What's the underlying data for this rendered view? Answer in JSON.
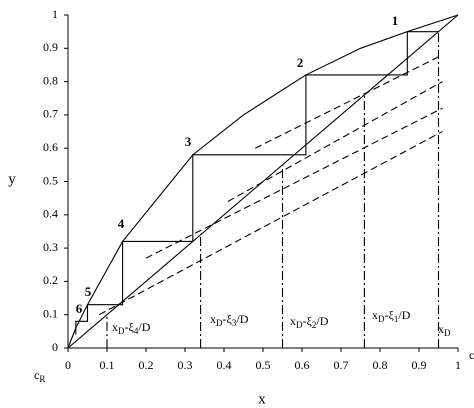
{
  "chart_data": {
    "type": "line",
    "xlabel": "x",
    "ylabel": "y",
    "xlim": [
      0,
      1
    ],
    "ylim": [
      0,
      1
    ],
    "xticks": [
      0,
      0.1,
      0.2,
      0.3,
      0.4,
      0.5,
      0.6,
      0.7,
      0.8,
      0.9,
      1
    ],
    "yticks": [
      0,
      0.1,
      0.2,
      0.3,
      0.4,
      0.5,
      0.6,
      0.7,
      0.8,
      0.9,
      1
    ],
    "series": [
      {
        "color": "#000000",
        "style": "solid",
        "x": [
          0,
          0.02,
          0.05,
          0.14,
          0.32,
          0.45,
          0.61,
          0.75,
          0.87,
          1
        ],
        "values": [
          0,
          0.06,
          0.13,
          0.32,
          0.58,
          0.7,
          0.82,
          0.9,
          0.95,
          1
        ]
      },
      {
        "color": "#000000",
        "style": "solid",
        "x": [
          0,
          1
        ],
        "values": [
          0,
          1
        ]
      },
      {
        "color": "#000000",
        "style": "solid",
        "x": [
          0.95,
          0.87,
          0.87,
          0.61,
          0.61,
          0.32,
          0.32,
          0.14,
          0.14,
          0.05,
          0.05,
          0.02,
          0.02
        ],
        "values": [
          0.95,
          0.95,
          0.82,
          0.82,
          0.58,
          0.58,
          0.32,
          0.32,
          0.13,
          0.13,
          0.08,
          0.08,
          0.04
        ]
      },
      {
        "color": "#000000",
        "style": "dash",
        "x": [
          0.48,
          0.96
        ],
        "values": [
          0.6,
          0.88
        ]
      },
      {
        "color": "#000000",
        "style": "dash",
        "x": [
          0.41,
          0.96
        ],
        "values": [
          0.44,
          0.8
        ]
      },
      {
        "color": "#000000",
        "style": "dash",
        "x": [
          0.2,
          0.96
        ],
        "values": [
          0.27,
          0.72
        ]
      },
      {
        "color": "#000000",
        "style": "dash",
        "x": [
          0.08,
          0.96
        ],
        "values": [
          0.1,
          0.65
        ]
      },
      {
        "color": "#000000",
        "style": "dashdot",
        "x": [
          0.1,
          0.1
        ],
        "values": [
          0,
          0.1
        ]
      },
      {
        "color": "#000000",
        "style": "dashdot",
        "x": [
          0.34,
          0.34
        ],
        "values": [
          0,
          0.34
        ]
      },
      {
        "color": "#000000",
        "style": "dashdot",
        "x": [
          0.55,
          0.55
        ],
        "values": [
          0,
          0.55
        ]
      },
      {
        "color": "#000000",
        "style": "dashdot",
        "x": [
          0.76,
          0.76
        ],
        "values": [
          0,
          0.76
        ]
      },
      {
        "color": "#000000",
        "style": "dashdot",
        "x": [
          0.95,
          0.95
        ],
        "values": [
          0,
          0.95
        ]
      }
    ],
    "point_labels": [
      "1",
      "2",
      "3",
      "4",
      "5",
      "6"
    ],
    "line_labels": [
      [
        "x",
        "D",
        "-ξ",
        "4",
        "/D"
      ],
      [
        "x",
        "D",
        "-ξ",
        "3",
        "/D"
      ],
      [
        "x",
        "D",
        "-ξ",
        "2",
        "/D"
      ],
      [
        "x",
        "D",
        "-ξ",
        "1",
        "/D"
      ],
      [
        "x",
        "D"
      ]
    ],
    "corner_label": [
      "c",
      "R"
    ],
    "right_label": "c"
  }
}
